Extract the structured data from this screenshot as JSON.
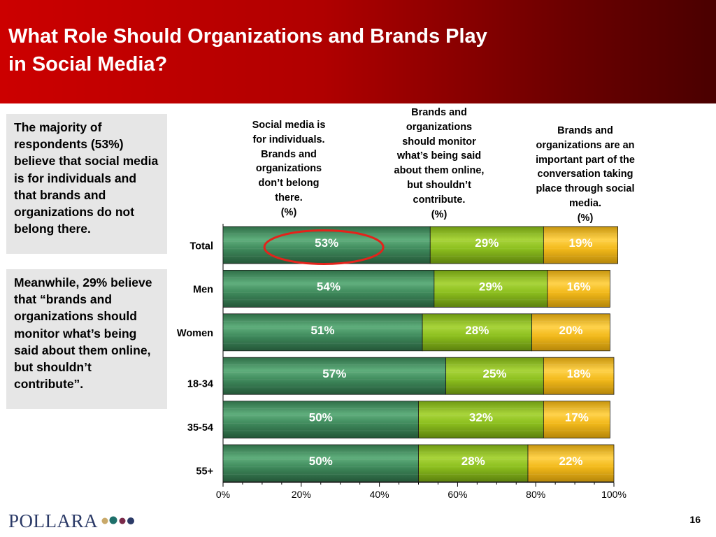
{
  "header": {
    "title_line1": "What Role Should Organizations and Brands Play",
    "title_line2": "in Social Media?"
  },
  "notes": {
    "note1": "The majority of respondents (53%) believe that social media is for individuals and that brands and organizations do not belong there.",
    "note2": "Meanwhile, 29% believe that “brands and organizations should monitor what’s being said about them online, but shouldn’t contribute”."
  },
  "column_heads": {
    "col1": [
      "Social media is",
      "for individuals.",
      "Brands and",
      "organizations",
      "don’t belong",
      "there.",
      "(%)"
    ],
    "col2": [
      "Brands and",
      "organizations",
      "should monitor",
      "what’s being said",
      "about them online,",
      "but shouldn’t",
      "contribute.",
      "(%)"
    ],
    "col3": [
      "Brands and",
      "organizations are an",
      "important part of the",
      "conversation taking",
      "place through social",
      "media.",
      "(%)"
    ]
  },
  "colors": {
    "series1": "#3f8a5c",
    "series2": "#8cbf1e",
    "series3": "#f2b91a",
    "highlight": "#e3231b"
  },
  "chart_data": {
    "type": "bar",
    "orientation": "horizontal",
    "stacked": true,
    "categories": [
      "Total",
      "Men",
      "Women",
      "18-34",
      "35-54",
      "55+"
    ],
    "series": [
      {
        "values": [
          53,
          54,
          51,
          57,
          50,
          50
        ],
        "labels": [
          "53%",
          "54%",
          "51%",
          "57%",
          "50%",
          "50%"
        ]
      },
      {
        "values": [
          29,
          29,
          28,
          25,
          32,
          28
        ],
        "labels": [
          "29%",
          "29%",
          "28%",
          "25%",
          "32%",
          "28%"
        ]
      },
      {
        "values": [
          19,
          16,
          20,
          18,
          17,
          22
        ],
        "labels": [
          "19%",
          "16%",
          "20%",
          "18%",
          "17%",
          "22%"
        ]
      }
    ],
    "xlim": [
      0,
      100
    ],
    "x_ticks": [
      0,
      20,
      40,
      60,
      80,
      100
    ],
    "x_tick_labels": [
      "0%",
      "20%",
      "40%",
      "60%",
      "80%",
      "100%"
    ],
    "highlighted": {
      "category": "Total",
      "series_index": 0
    }
  },
  "footer": {
    "logo_text": "POLLARA",
    "page_number": "16"
  }
}
